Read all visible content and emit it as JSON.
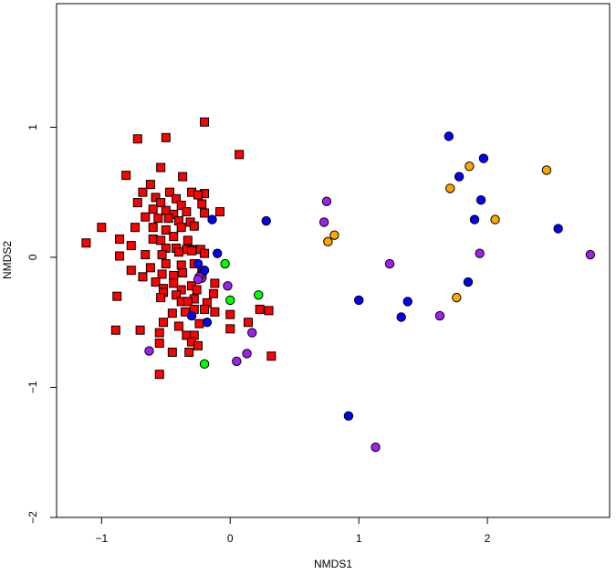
{
  "chart_data": {
    "type": "scatter",
    "title": "",
    "xlabel": "NMDS1",
    "ylabel": "NMDS2",
    "xlim": [
      -1.35,
      2.95
    ],
    "ylim": [
      -2.0,
      1.95
    ],
    "x_ticks": [
      -1,
      0,
      1,
      2
    ],
    "y_ticks": [
      -2,
      -1,
      0,
      1
    ],
    "x_tick_labels": [
      "−1",
      "0",
      "1",
      "2"
    ],
    "y_tick_labels": [
      "−2",
      "−1",
      "0",
      "1"
    ],
    "grid": false,
    "legend": "none",
    "series": [
      {
        "marker": "square",
        "color": "#ff0000",
        "points": [
          [
            -0.2,
            1.04
          ],
          [
            -0.72,
            0.91
          ],
          [
            -0.5,
            0.92
          ],
          [
            0.07,
            0.79
          ],
          [
            -0.81,
            0.63
          ],
          [
            -0.54,
            0.69
          ],
          [
            -0.37,
            0.62
          ],
          [
            -0.08,
            0.35
          ],
          [
            -0.62,
            0.56
          ],
          [
            -0.68,
            0.5
          ],
          [
            -0.47,
            0.5
          ],
          [
            -0.3,
            0.5
          ],
          [
            -0.2,
            0.49
          ],
          [
            -0.58,
            0.46
          ],
          [
            -0.42,
            0.45
          ],
          [
            -0.25,
            0.48
          ],
          [
            -0.72,
            0.42
          ],
          [
            -0.54,
            0.42
          ],
          [
            -0.38,
            0.4
          ],
          [
            -0.6,
            0.37
          ],
          [
            -0.5,
            0.36
          ],
          [
            -0.44,
            0.33
          ],
          [
            -0.34,
            0.35
          ],
          [
            -0.22,
            0.41
          ],
          [
            -0.66,
            0.31
          ],
          [
            -0.56,
            0.3
          ],
          [
            -0.48,
            0.3
          ],
          [
            -0.4,
            0.28
          ],
          [
            -0.31,
            0.27
          ],
          [
            -0.2,
            0.34
          ],
          [
            -0.74,
            0.23
          ],
          [
            -0.6,
            0.23
          ],
          [
            -0.5,
            0.21
          ],
          [
            -0.38,
            0.23
          ],
          [
            -0.28,
            0.24
          ],
          [
            -1.0,
            0.23
          ],
          [
            -0.86,
            0.14
          ],
          [
            -0.6,
            0.14
          ],
          [
            -0.54,
            0.13
          ],
          [
            -0.44,
            0.16
          ],
          [
            -0.33,
            0.13
          ],
          [
            -0.77,
            0.09
          ],
          [
            -0.66,
            0.02
          ],
          [
            -0.5,
            0.07
          ],
          [
            -0.42,
            0.07
          ],
          [
            -0.34,
            0.06
          ],
          [
            -0.28,
            0.06
          ],
          [
            -0.23,
            0.06
          ],
          [
            -1.12,
            0.11
          ],
          [
            -0.86,
            0.01
          ],
          [
            -0.53,
            0.02
          ],
          [
            -0.4,
            0.04
          ],
          [
            -0.3,
            0.05
          ],
          [
            -0.2,
            0.03
          ],
          [
            -0.77,
            -0.1
          ],
          [
            -0.62,
            -0.08
          ],
          [
            -0.5,
            -0.05
          ],
          [
            -0.38,
            -0.06
          ],
          [
            -0.28,
            -0.05
          ],
          [
            -0.53,
            -0.13
          ],
          [
            -0.44,
            -0.14
          ],
          [
            -0.37,
            -0.12
          ],
          [
            -0.22,
            -0.12
          ],
          [
            -0.68,
            -0.15
          ],
          [
            -0.58,
            -0.19
          ],
          [
            -0.44,
            -0.2
          ],
          [
            -0.3,
            -0.22
          ],
          [
            -0.12,
            -0.2
          ],
          [
            -0.52,
            -0.24
          ],
          [
            -0.38,
            -0.25
          ],
          [
            -0.26,
            -0.25
          ],
          [
            -0.88,
            -0.3
          ],
          [
            -0.52,
            -0.27
          ],
          [
            -0.54,
            -0.31
          ],
          [
            -0.42,
            -0.29
          ],
          [
            -0.28,
            -0.32
          ],
          [
            -0.13,
            -0.28
          ],
          [
            -0.38,
            -0.34
          ],
          [
            -0.33,
            -0.34
          ],
          [
            -0.18,
            -0.35
          ],
          [
            -0.28,
            -0.4
          ],
          [
            -0.45,
            -0.43
          ],
          [
            -0.35,
            -0.42
          ],
          [
            -0.2,
            -0.4
          ],
          [
            -0.12,
            -0.42
          ],
          [
            0.0,
            -0.44
          ],
          [
            0.23,
            -0.4
          ],
          [
            0.3,
            -0.41
          ],
          [
            -0.52,
            -0.5
          ],
          [
            -0.4,
            -0.53
          ],
          [
            -0.24,
            -0.51
          ],
          [
            -0.89,
            -0.56
          ],
          [
            -0.7,
            -0.56
          ],
          [
            -0.55,
            -0.58
          ],
          [
            -0.34,
            -0.6
          ],
          [
            -0.28,
            -0.6
          ],
          [
            0.0,
            -0.55
          ],
          [
            0.14,
            -0.5
          ],
          [
            -0.3,
            -0.65
          ],
          [
            -0.55,
            -0.66
          ],
          [
            -0.25,
            -0.68
          ],
          [
            -0.45,
            -0.73
          ],
          [
            -0.32,
            -0.73
          ],
          [
            0.32,
            -0.76
          ],
          [
            -0.55,
            -0.9
          ]
        ]
      },
      {
        "marker": "circle",
        "color": "#0000ff",
        "points": [
          [
            1.7,
            0.93
          ],
          [
            1.97,
            0.76
          ],
          [
            1.78,
            0.62
          ],
          [
            1.95,
            0.44
          ],
          [
            1.9,
            0.29
          ],
          [
            2.55,
            0.22
          ],
          [
            0.28,
            0.28
          ],
          [
            -0.14,
            0.29
          ],
          [
            -0.1,
            0.03
          ],
          [
            -0.25,
            -0.05
          ],
          [
            -0.22,
            -0.13
          ],
          [
            -0.2,
            -0.1
          ],
          [
            1.85,
            -0.19
          ],
          [
            1.38,
            -0.34
          ],
          [
            1.0,
            -0.33
          ],
          [
            1.33,
            -0.46
          ],
          [
            -0.3,
            -0.45
          ],
          [
            -0.18,
            -0.5
          ],
          [
            0.92,
            -1.22
          ]
        ]
      },
      {
        "marker": "circle",
        "color": "#ffa500",
        "points": [
          [
            2.46,
            0.67
          ],
          [
            1.86,
            0.7
          ],
          [
            1.71,
            0.53
          ],
          [
            2.06,
            0.29
          ],
          [
            0.81,
            0.17
          ],
          [
            0.76,
            0.12
          ],
          [
            1.76,
            -0.31
          ]
        ]
      },
      {
        "marker": "circle",
        "color": "#a020f0",
        "points": [
          [
            0.75,
            0.43
          ],
          [
            0.73,
            0.27
          ],
          [
            1.94,
            0.03
          ],
          [
            2.8,
            0.02
          ],
          [
            1.24,
            -0.05
          ],
          [
            -0.22,
            -0.16
          ],
          [
            -0.24,
            -0.15
          ],
          [
            -0.25,
            -0.17
          ],
          [
            -0.02,
            -0.22
          ],
          [
            1.63,
            -0.45
          ],
          [
            0.17,
            -0.58
          ],
          [
            -0.63,
            -0.72
          ],
          [
            0.13,
            -0.74
          ],
          [
            0.05,
            -0.8
          ],
          [
            1.13,
            -1.46
          ]
        ]
      },
      {
        "marker": "circle",
        "color": "#00ff00",
        "points": [
          [
            -0.04,
            -0.05
          ],
          [
            0.0,
            -0.33
          ],
          [
            0.22,
            -0.29
          ],
          [
            -0.2,
            -0.82
          ]
        ]
      }
    ]
  }
}
